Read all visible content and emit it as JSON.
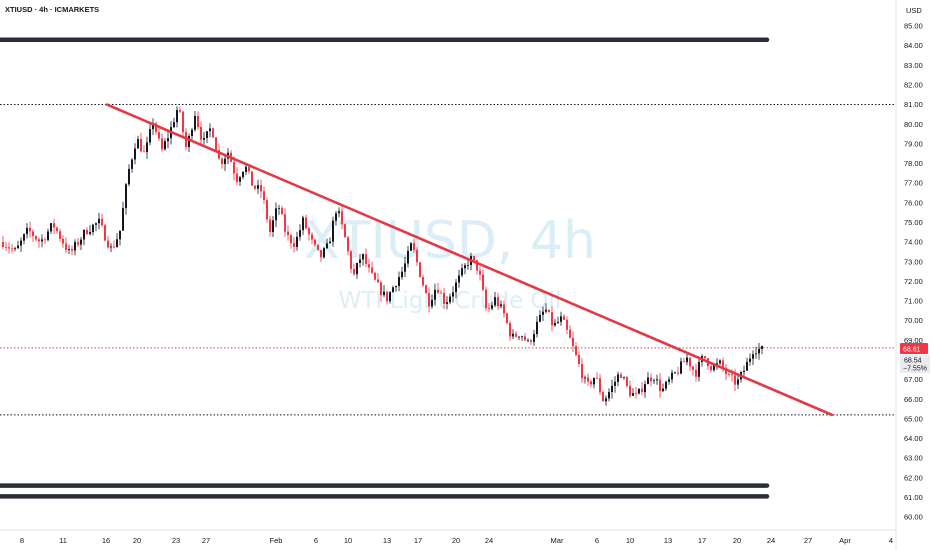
{
  "header": {
    "symbol_line": "XTIUSD · 4h · ICMARKETS"
  },
  "watermark": {
    "symbol": "XTIUSD, 4h",
    "description": "WTI Light Crude Oil"
  },
  "price_axis": {
    "currency": "USD"
  },
  "current_price": {
    "last": "68.61",
    "close": "68.54",
    "change": "−7.55%",
    "tag_color": "#f23645"
  },
  "colors": {
    "up": "#131722",
    "down": "#f23645",
    "trendline": "#e03a45",
    "level": "#2a2e39"
  },
  "chart_data": {
    "type": "candlestick",
    "title": "XTIUSD · 4h · ICMARKETS",
    "ylim": [
      59.5,
      86.0
    ],
    "y_ticks": [
      "60.00",
      "61.00",
      "62.00",
      "63.00",
      "64.00",
      "65.00",
      "66.00",
      "67.00",
      "68.00",
      "69.00",
      "70.00",
      "71.00",
      "72.00",
      "73.00",
      "74.00",
      "75.00",
      "76.00",
      "77.00",
      "78.00",
      "79.00",
      "80.00",
      "81.00",
      "82.00",
      "83.00",
      "84.00",
      "85.00"
    ],
    "x_ticks": [
      "8",
      "11",
      "16",
      "20",
      "23",
      "27",
      "Feb",
      "6",
      "10",
      "13",
      "17",
      "20",
      "24",
      "Mar",
      "6",
      "10",
      "13",
      "17",
      "20",
      "24",
      "27",
      "Apr",
      "4"
    ],
    "horizontal_levels": [
      {
        "price": 84.3,
        "style": "thick"
      },
      {
        "price": 81.0,
        "style": "dotted"
      },
      {
        "price": 68.61,
        "style": "dotted-red"
      },
      {
        "price": 65.2,
        "style": "dotted"
      },
      {
        "price": 61.6,
        "style": "thick"
      },
      {
        "price": 61.05,
        "style": "thick"
      }
    ],
    "trendline": {
      "from": {
        "date": "16",
        "price": 81.0
      },
      "to": {
        "date": "27",
        "price": 65.2
      }
    },
    "price_path": [
      [
        74.0,
        0
      ],
      [
        73.5,
        3
      ],
      [
        74.6,
        6
      ],
      [
        74.0,
        9
      ],
      [
        74.9,
        12
      ],
      [
        73.4,
        16
      ],
      [
        74.6,
        20
      ],
      [
        75.0,
        23
      ],
      [
        73.6,
        26
      ],
      [
        74.5,
        28
      ],
      [
        77.5,
        30
      ],
      [
        79.3,
        32
      ],
      [
        78.4,
        34
      ],
      [
        80.2,
        36
      ],
      [
        78.6,
        38
      ],
      [
        79.6,
        40
      ],
      [
        80.9,
        42
      ],
      [
        78.7,
        44
      ],
      [
        80.6,
        46
      ],
      [
        79.0,
        48
      ],
      [
        79.9,
        50
      ],
      [
        78.0,
        52
      ],
      [
        78.6,
        54
      ],
      [
        77.2,
        56
      ],
      [
        77.9,
        58
      ],
      [
        76.8,
        60
      ],
      [
        76.6,
        62
      ],
      [
        74.5,
        64
      ],
      [
        75.9,
        66
      ],
      [
        74.3,
        68
      ],
      [
        73.9,
        70
      ],
      [
        75.1,
        72
      ],
      [
        74.0,
        74
      ],
      [
        73.2,
        76
      ],
      [
        73.8,
        78
      ],
      [
        75.8,
        80
      ],
      [
        74.2,
        82
      ],
      [
        72.2,
        84
      ],
      [
        73.4,
        86
      ],
      [
        72.4,
        88
      ],
      [
        71.7,
        90
      ],
      [
        71.1,
        92
      ],
      [
        71.9,
        94
      ],
      [
        72.6,
        96
      ],
      [
        73.9,
        98
      ],
      [
        72.4,
        100
      ],
      [
        70.9,
        102
      ],
      [
        71.8,
        104
      ],
      [
        70.9,
        106
      ],
      [
        71.6,
        108
      ],
      [
        72.4,
        110
      ],
      [
        73.2,
        112
      ],
      [
        72.6,
        114
      ],
      [
        70.4,
        116
      ],
      [
        71.1,
        118
      ],
      [
        70.4,
        120
      ],
      [
        69.1,
        122
      ],
      [
        69.4,
        124
      ],
      [
        68.8,
        126
      ],
      [
        69.8,
        128
      ],
      [
        70.6,
        130
      ],
      [
        69.7,
        132
      ],
      [
        70.1,
        134
      ],
      [
        69.0,
        136
      ],
      [
        67.8,
        138
      ],
      [
        66.6,
        140
      ],
      [
        67.2,
        142
      ],
      [
        65.9,
        144
      ],
      [
        66.6,
        146
      ],
      [
        67.4,
        148
      ],
      [
        66.4,
        150
      ],
      [
        66.1,
        152
      ],
      [
        66.9,
        154
      ],
      [
        67.2,
        156
      ],
      [
        66.4,
        158
      ],
      [
        67.0,
        160
      ],
      [
        67.5,
        162
      ],
      [
        68.1,
        164
      ],
      [
        67.3,
        166
      ],
      [
        68.2,
        168
      ],
      [
        67.6,
        170
      ],
      [
        67.8,
        172
      ],
      [
        67.1,
        174
      ],
      [
        66.8,
        176
      ],
      [
        67.6,
        178
      ],
      [
        68.6,
        180
      ],
      [
        68.5,
        182
      ]
    ],
    "grid": false,
    "legend": "none"
  }
}
